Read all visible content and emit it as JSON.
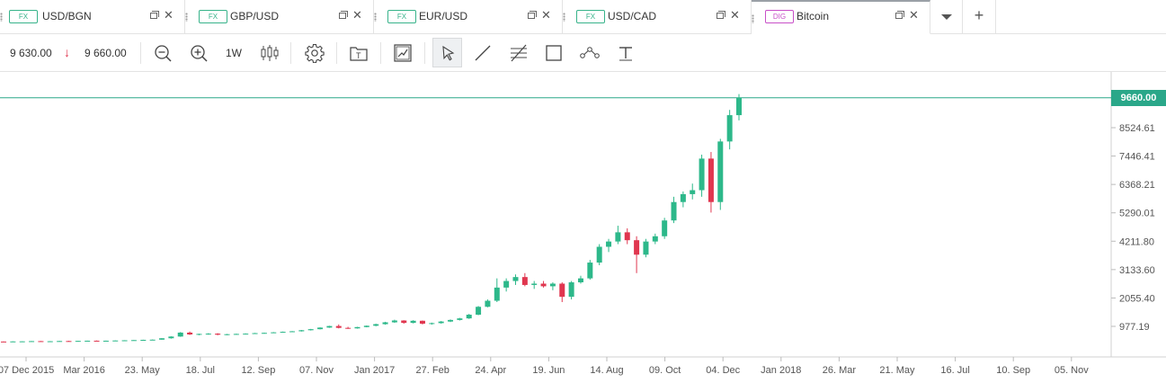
{
  "tabs": [
    {
      "badge": "FX",
      "label": "USD/BGN"
    },
    {
      "badge": "FX",
      "label": "GBP/USD"
    },
    {
      "badge": "FX",
      "label": "EUR/USD"
    },
    {
      "badge": "FX",
      "label": "USD/CAD"
    },
    {
      "badge": "DIG",
      "label": "Bitcoin",
      "active": true
    }
  ],
  "toolbar": {
    "sell_price": "9 630.00",
    "buy_price": "9 660.00",
    "timeframe": "1W"
  },
  "chart_data": {
    "type": "candlestick",
    "instrument": "Bitcoin",
    "current_price_label": "9660.00",
    "y_ticks": [
      "8524.61",
      "7446.41",
      "6368.21",
      "5290.01",
      "4211.80",
      "3133.60",
      "2055.40",
      "977.19"
    ],
    "x_ticks": [
      "07 Dec 2015",
      "Mar 2016",
      "23. May",
      "18. Jul",
      "12. Sep",
      "07. Nov",
      "Jan 2017",
      "27. Feb",
      "24. Apr",
      "19. Jun",
      "14. Aug",
      "09. Oct",
      "04. Dec",
      "Jan 2018",
      "26. Mar",
      "21. May",
      "16. Jul",
      "10. Sep",
      "05. Nov"
    ],
    "ylim": [
      0,
      10500
    ],
    "colors": {
      "up": "#2db88a",
      "down": "#e0364f",
      "price_line": "#2aa789"
    },
    "candles": [
      [
        400,
        405,
        392,
        398
      ],
      [
        398,
        410,
        395,
        405
      ],
      [
        405,
        412,
        400,
        408
      ],
      [
        408,
        420,
        403,
        416
      ],
      [
        416,
        422,
        405,
        410
      ],
      [
        410,
        418,
        402,
        412
      ],
      [
        412,
        425,
        408,
        420
      ],
      [
        420,
        428,
        410,
        418
      ],
      [
        418,
        430,
        414,
        425
      ],
      [
        425,
        435,
        420,
        432
      ],
      [
        432,
        440,
        425,
        428
      ],
      [
        428,
        436,
        420,
        432
      ],
      [
        432,
        445,
        428,
        440
      ],
      [
        440,
        452,
        435,
        448
      ],
      [
        448,
        460,
        440,
        455
      ],
      [
        455,
        470,
        450,
        465
      ],
      [
        465,
        480,
        458,
        472
      ],
      [
        472,
        530,
        468,
        525
      ],
      [
        525,
        600,
        510,
        590
      ],
      [
        590,
        760,
        580,
        740
      ],
      [
        740,
        780,
        650,
        670
      ],
      [
        670,
        700,
        640,
        690
      ],
      [
        690,
        720,
        660,
        700
      ],
      [
        700,
        720,
        640,
        660
      ],
      [
        660,
        690,
        640,
        680
      ],
      [
        680,
        700,
        660,
        690
      ],
      [
        690,
        710,
        670,
        700
      ],
      [
        700,
        730,
        690,
        720
      ],
      [
        720,
        740,
        700,
        730
      ],
      [
        730,
        760,
        720,
        750
      ],
      [
        750,
        780,
        740,
        770
      ],
      [
        770,
        800,
        760,
        790
      ],
      [
        790,
        840,
        780,
        830
      ],
      [
        830,
        880,
        820,
        870
      ],
      [
        870,
        940,
        860,
        930
      ],
      [
        930,
        1000,
        920,
        990
      ],
      [
        990,
        1050,
        900,
        920
      ],
      [
        920,
        960,
        880,
        900
      ],
      [
        900,
        960,
        890,
        950
      ],
      [
        950,
        1010,
        940,
        1000
      ],
      [
        1000,
        1080,
        980,
        1060
      ],
      [
        1060,
        1150,
        1040,
        1130
      ],
      [
        1130,
        1230,
        1110,
        1200
      ],
      [
        1200,
        1210,
        1080,
        1110
      ],
      [
        1110,
        1210,
        1090,
        1190
      ],
      [
        1190,
        1200,
        1050,
        1080
      ],
      [
        1080,
        1120,
        1040,
        1100
      ],
      [
        1100,
        1180,
        1080,
        1160
      ],
      [
        1160,
        1240,
        1140,
        1220
      ],
      [
        1220,
        1300,
        1200,
        1280
      ],
      [
        1280,
        1450,
        1260,
        1420
      ],
      [
        1420,
        1750,
        1400,
        1720
      ],
      [
        1720,
        2000,
        1700,
        1950
      ],
      [
        1950,
        2800,
        1900,
        2450
      ],
      [
        2450,
        2800,
        2300,
        2700
      ],
      [
        2700,
        2950,
        2550,
        2850
      ],
      [
        2850,
        3000,
        2500,
        2550
      ],
      [
        2550,
        2700,
        2400,
        2600
      ],
      [
        2600,
        2700,
        2450,
        2500
      ],
      [
        2500,
        2650,
        2350,
        2600
      ],
      [
        2600,
        2650,
        1900,
        2100
      ],
      [
        2100,
        2700,
        2000,
        2650
      ],
      [
        2650,
        2900,
        2600,
        2800
      ],
      [
        2800,
        3500,
        2750,
        3400
      ],
      [
        3400,
        4100,
        3300,
        4000
      ],
      [
        4000,
        4300,
        3800,
        4200
      ],
      [
        4200,
        4800,
        4100,
        4550
      ],
      [
        4550,
        4700,
        4100,
        4250
      ],
      [
        4250,
        4400,
        3000,
        3700
      ],
      [
        3700,
        4300,
        3600,
        4200
      ],
      [
        4200,
        4500,
        4100,
        4400
      ],
      [
        4400,
        5100,
        4300,
        5000
      ],
      [
        5000,
        5900,
        4900,
        5700
      ],
      [
        5700,
        6100,
        5500,
        6000
      ],
      [
        6000,
        6400,
        5800,
        6150
      ],
      [
        6150,
        7500,
        5900,
        7350
      ],
      [
        7350,
        7600,
        5300,
        5700
      ],
      [
        5700,
        8100,
        5400,
        8000
      ],
      [
        8000,
        9200,
        7700,
        9000
      ],
      [
        9000,
        9800,
        8800,
        9660
      ]
    ]
  }
}
